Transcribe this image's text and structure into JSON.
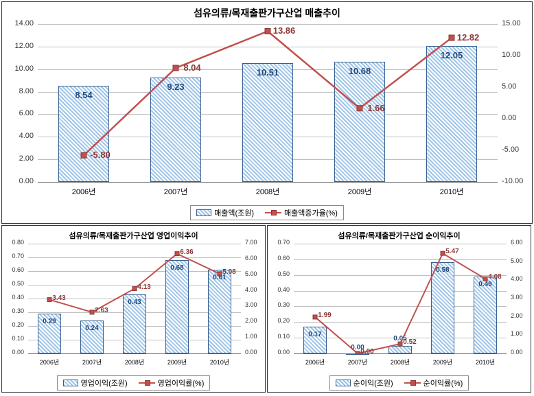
{
  "top_chart": {
    "type": "bar+line",
    "title": "섬유의류/목재출판가구산업 매출추이",
    "title_fontsize": 14,
    "categories": [
      "2006년",
      "2007년",
      "2008년",
      "2009년",
      "2010년"
    ],
    "bars": {
      "label": "매출액(조원)",
      "values": [
        8.54,
        9.23,
        10.51,
        10.68,
        12.05
      ],
      "color_pattern": "#9fc5e8",
      "border_color": "#376091",
      "value_color": "#1f497d",
      "value_fontsize": 13
    },
    "line": {
      "label": "매출액증가율(%)",
      "values": [
        -5.8,
        8.04,
        13.86,
        1.66,
        12.82
      ],
      "color": "#c0504d",
      "marker": "square",
      "marker_size": 8,
      "line_width": 2.5,
      "value_color": "#8c3836",
      "value_fontsize": 13
    },
    "y_left": {
      "min": 0.0,
      "max": 14.0,
      "step": 2.0,
      "fmt": "fixed2"
    },
    "y_right": {
      "min": -10.0,
      "max": 15.0,
      "step": 5.0,
      "fmt": "fixed2"
    },
    "grid_color": "#bfbfbf",
    "background_color": "#ffffff"
  },
  "bottom_left": {
    "type": "bar+line",
    "title": "섬유의류/목재출판가구산업 영업이익추이",
    "title_fontsize": 11,
    "categories": [
      "2006년",
      "2007년",
      "2008년",
      "2009년",
      "2010년"
    ],
    "bars": {
      "label": "영업이익(조원)",
      "values": [
        0.29,
        0.24,
        0.43,
        0.68,
        0.61
      ],
      "color_pattern": "#9fc5e8",
      "border_color": "#376091",
      "value_color": "#1f497d",
      "value_fontsize": 10
    },
    "line": {
      "label": "영업이익률(%)",
      "values": [
        3.43,
        2.63,
        4.13,
        6.36,
        5.08
      ],
      "color": "#c0504d",
      "marker": "square",
      "marker_size": 6,
      "line_width": 2,
      "value_color": "#8c3836",
      "value_fontsize": 10
    },
    "y_left": {
      "min": 0.0,
      "max": 0.8,
      "step": 0.1,
      "fmt": "fixed2"
    },
    "y_right": {
      "min": 0.0,
      "max": 7.0,
      "step": 1.0,
      "fmt": "fixed2"
    },
    "grid_color": "#bfbfbf",
    "background_color": "#ffffff"
  },
  "bottom_right": {
    "type": "bar+line",
    "title": "섬유의류/목재출판가구산업 순이익추이",
    "title_fontsize": 11,
    "categories": [
      "2006년",
      "2007년",
      "2008년",
      "2009년",
      "2010년"
    ],
    "bars": {
      "label": "순이익(조원)",
      "values": [
        0.17,
        0.0,
        0.05,
        0.58,
        0.49
      ],
      "bar_value_labels": [
        "0.17",
        "0.00",
        "0.05",
        "0.58",
        "0.49"
      ],
      "color_pattern": "#9fc5e8",
      "border_color": "#376091",
      "value_color": "#1f497d",
      "value_fontsize": 10
    },
    "line": {
      "label": "순이익률(%)",
      "values": [
        1.99,
        0.0,
        0.52,
        5.47,
        4.08
      ],
      "line_value_labels": [
        "1.99",
        "0.00",
        "0.52",
        "5.47",
        "4.08"
      ],
      "color": "#c0504d",
      "marker": "square",
      "marker_size": 6,
      "line_width": 2,
      "value_color": "#8c3836",
      "value_fontsize": 10
    },
    "y_left": {
      "min": 0.0,
      "max": 0.7,
      "step": 0.1,
      "fmt": "fixed2"
    },
    "y_right": {
      "min": 0.0,
      "max": 6.0,
      "step": 1.0,
      "fmt": "fixed2"
    },
    "grid_color": "#bfbfbf",
    "background_color": "#ffffff"
  }
}
